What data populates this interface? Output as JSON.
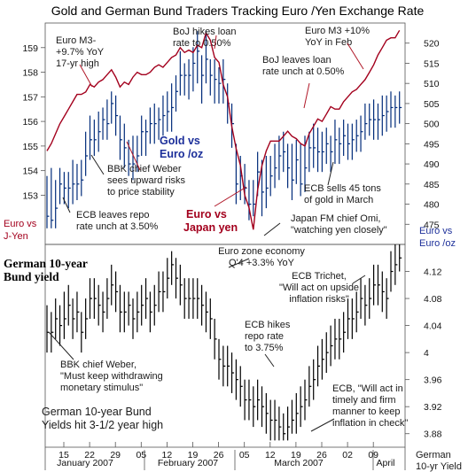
{
  "chart_data": [
    {
      "type": "line",
      "title": "Gold and German Bund Traders Tracking Euro /Yen Exchange Rate",
      "panel": "top",
      "left_axis": {
        "ylim": [
          151,
          160
        ],
        "ticks": [
          153,
          154,
          155,
          156,
          157,
          158,
          159
        ],
        "ylabel": "Euro vs J-Yen"
      },
      "right_axis": {
        "ylim": [
          470,
          525
        ],
        "ticks": [
          475,
          480,
          485,
          490,
          495,
          500,
          505,
          510,
          515,
          520
        ],
        "ylabel": "Euro vs Euro /oz"
      },
      "series": [
        {
          "name": "Euro vs Japan yen",
          "style": "line",
          "color": "#a3001d",
          "axis": "left",
          "x": [
            0,
            1,
            2,
            3,
            4,
            5,
            6,
            7,
            8,
            9,
            10,
            11,
            12,
            13,
            14,
            15,
            16,
            17,
            18,
            19,
            20,
            21,
            22,
            23,
            24,
            25,
            26,
            27,
            28,
            29,
            30,
            31,
            32,
            33,
            34,
            35,
            36,
            37,
            38,
            39,
            40,
            41,
            42,
            43,
            44,
            45,
            46,
            47,
            48,
            49,
            50,
            51,
            52,
            53,
            54,
            55,
            56,
            57,
            58,
            59,
            60,
            61,
            62,
            63,
            64,
            65,
            66,
            67,
            68,
            69,
            70,
            71,
            72,
            73,
            74,
            75,
            76,
            77,
            78,
            79,
            80,
            81,
            82
          ],
          "y": [
            154.8,
            155.1,
            155.5,
            155.9,
            156.2,
            156.5,
            156.8,
            157.1,
            157.1,
            157.2,
            157.5,
            157.4,
            157.6,
            157.7,
            157.9,
            158.1,
            157.8,
            157.4,
            157.6,
            157.5,
            157.8,
            158.0,
            157.9,
            157.9,
            158.0,
            158.2,
            158.3,
            158.2,
            158.4,
            158.6,
            158.7,
            159.0,
            158.8,
            158.9,
            158.8,
            159.1,
            159.0,
            159.6,
            159.3,
            158.6,
            158.4,
            157.5,
            157.0,
            155.8,
            154.9,
            154.2,
            153.0,
            152.5,
            151.6,
            153.2,
            154.2,
            154.8,
            155.2,
            155.2,
            155.2,
            155.4,
            155.6,
            155.4,
            155.3,
            155.1,
            155.0,
            155.5,
            155.8,
            156.1,
            156.0,
            156.3,
            156.6,
            156.5,
            156.5,
            156.8,
            157.0,
            157.2,
            157.3,
            157.5,
            157.7,
            158.0,
            158.3,
            158.7,
            159.0,
            159.3,
            159.4,
            159.4,
            159.7
          ]
        },
        {
          "name": "Gold vs Euro /oz",
          "style": "hlc",
          "color": "#002b7a",
          "axis": "right",
          "x": [
            0,
            1,
            2,
            3,
            4,
            5,
            6,
            7,
            8,
            9,
            10,
            11,
            12,
            13,
            14,
            15,
            16,
            17,
            18,
            19,
            20,
            21,
            22,
            23,
            24,
            25,
            26,
            27,
            28,
            29,
            30,
            31,
            32,
            33,
            34,
            35,
            36,
            37,
            38,
            39,
            40,
            41,
            42,
            43,
            44,
            45,
            46,
            47,
            48,
            49,
            50,
            51,
            52,
            53,
            54,
            55,
            56,
            57,
            58,
            59,
            60,
            61,
            62,
            63,
            64,
            65,
            66,
            67,
            68,
            69,
            70,
            71,
            72,
            73,
            74,
            75,
            76,
            77,
            78,
            79,
            80,
            81,
            82
          ],
          "close": [
            477,
            476,
            479,
            485,
            484,
            484,
            485,
            485,
            486,
            492,
            496,
            496,
            498,
            501,
            500,
            505,
            502,
            496,
            494,
            490,
            490,
            492,
            498,
            498,
            500,
            500,
            501,
            502,
            503,
            504,
            508,
            512,
            512,
            512,
            515,
            518,
            512,
            516,
            512,
            511,
            510,
            511,
            505,
            500,
            485,
            487,
            484,
            480,
            480,
            488,
            483,
            484,
            487,
            489,
            492,
            493,
            489,
            486,
            491,
            485,
            489,
            494,
            494,
            493,
            493,
            495,
            493,
            496,
            495,
            497,
            495,
            496,
            497,
            498,
            500,
            501,
            501,
            501,
            502,
            503,
            504,
            504,
            504
          ],
          "high": [
            487,
            489,
            486,
            489,
            488,
            488,
            491,
            490,
            491,
            498,
            502,
            501,
            503,
            504,
            506,
            508,
            507,
            502,
            500,
            496,
            497,
            497,
            502,
            501,
            504,
            505,
            504,
            507,
            508,
            510,
            512,
            518,
            515,
            516,
            519,
            523,
            517,
            523,
            516,
            516,
            514,
            516,
            510,
            505,
            495,
            492,
            490,
            486,
            486,
            493,
            491,
            492,
            492,
            495,
            497,
            498,
            495,
            495,
            496,
            495,
            497,
            498,
            500,
            499,
            498,
            499,
            497,
            501,
            499,
            501,
            500,
            500,
            501,
            502,
            505,
            505,
            506,
            505,
            507,
            507,
            508,
            507,
            508
          ],
          "low": [
            474,
            474,
            474,
            480,
            480,
            479,
            480,
            481,
            482,
            487,
            491,
            492,
            493,
            496,
            496,
            500,
            497,
            491,
            489,
            487,
            486,
            488,
            492,
            492,
            495,
            495,
            496,
            497,
            498,
            498,
            503,
            507,
            507,
            506,
            508,
            510,
            505,
            510,
            507,
            505,
            505,
            505,
            500,
            494,
            480,
            481,
            480,
            476,
            477,
            482,
            477,
            479,
            482,
            484,
            486,
            488,
            484,
            481,
            485,
            482,
            483,
            488,
            489,
            488,
            488,
            490,
            488,
            490,
            490,
            492,
            491,
            491,
            493,
            493,
            496,
            497,
            496,
            496,
            497,
            498,
            499,
            499,
            500
          ]
        }
      ]
    },
    {
      "type": "line",
      "panel": "bottom",
      "y_axis": {
        "ylim": [
          3.86,
          4.16
        ],
        "ticks": [
          3.88,
          3.92,
          3.96,
          4,
          4.04,
          4.08,
          4.12
        ],
        "ylabel": "German 10-yr Yield"
      },
      "series": [
        {
          "name": "German 10-year Bund yield",
          "style": "hlc",
          "color": "#000000",
          "x": [
            0,
            1,
            2,
            3,
            4,
            5,
            6,
            7,
            8,
            9,
            10,
            11,
            12,
            13,
            14,
            15,
            16,
            17,
            18,
            19,
            20,
            21,
            22,
            23,
            24,
            25,
            26,
            27,
            28,
            29,
            30,
            31,
            32,
            33,
            34,
            35,
            36,
            37,
            38,
            39,
            40,
            41,
            42,
            43,
            44,
            45,
            46,
            47,
            48,
            49,
            50,
            51,
            52,
            53,
            54,
            55,
            56,
            57,
            58,
            59,
            60,
            61,
            62,
            63,
            64,
            65,
            66,
            67,
            68,
            69,
            70,
            71,
            72,
            73,
            74,
            75,
            76,
            77,
            78,
            79,
            80,
            81,
            82
          ],
          "close": [
            4.03,
            4.03,
            4.05,
            4.04,
            4.05,
            4.07,
            4.05,
            4.06,
            4.03,
            4.05,
            4.08,
            4.08,
            4.07,
            4.06,
            4.08,
            4.1,
            4.09,
            4.06,
            4.06,
            4.07,
            4.05,
            4.06,
            4.07,
            4.08,
            4.06,
            4.07,
            4.09,
            4.09,
            4.11,
            4.13,
            4.11,
            4.1,
            4.08,
            4.08,
            4.08,
            4.08,
            4.07,
            4.06,
            4.05,
            4.02,
            3.99,
            3.98,
            3.98,
            3.97,
            3.96,
            3.95,
            3.93,
            3.93,
            3.92,
            3.93,
            3.92,
            3.91,
            3.9,
            3.9,
            3.89,
            3.88,
            3.89,
            3.9,
            3.91,
            3.92,
            3.93,
            3.95,
            3.96,
            3.98,
            3.99,
            4.0,
            4.01,
            4.02,
            4.02,
            4.03,
            4.05,
            4.05,
            4.06,
            4.08,
            4.07,
            4.08,
            4.1,
            4.1,
            4.09,
            4.08,
            4.12,
            4.13,
            4.14
          ],
          "high": [
            4.07,
            4.06,
            4.08,
            4.07,
            4.09,
            4.1,
            4.08,
            4.09,
            4.06,
            4.08,
            4.11,
            4.11,
            4.1,
            4.09,
            4.11,
            4.13,
            4.12,
            4.1,
            4.09,
            4.09,
            4.08,
            4.09,
            4.1,
            4.11,
            4.09,
            4.1,
            4.12,
            4.12,
            4.14,
            4.15,
            4.14,
            4.13,
            4.11,
            4.11,
            4.11,
            4.11,
            4.1,
            4.09,
            4.08,
            4.05,
            4.02,
            4.01,
            4.01,
            4.0,
            3.99,
            3.98,
            3.96,
            3.96,
            3.95,
            3.96,
            3.95,
            3.94,
            3.93,
            3.93,
            3.92,
            3.91,
            3.92,
            3.93,
            3.94,
            3.95,
            3.96,
            3.98,
            3.99,
            4.01,
            4.02,
            4.03,
            4.04,
            4.05,
            4.05,
            4.06,
            4.08,
            4.08,
            4.09,
            4.11,
            4.1,
            4.11,
            4.13,
            4.13,
            4.12,
            4.11,
            4.15,
            4.16,
            4.16
          ],
          "low": [
            4.0,
            4.0,
            4.02,
            4.01,
            4.02,
            4.04,
            4.02,
            4.03,
            4.0,
            4.02,
            4.05,
            4.05,
            4.04,
            4.03,
            4.05,
            4.07,
            4.06,
            4.03,
            4.03,
            4.04,
            4.02,
            4.03,
            4.04,
            4.05,
            4.03,
            4.04,
            4.06,
            4.06,
            4.08,
            4.1,
            4.08,
            4.07,
            4.05,
            4.05,
            4.05,
            4.05,
            4.04,
            4.03,
            4.02,
            3.99,
            3.96,
            3.95,
            3.95,
            3.94,
            3.93,
            3.92,
            3.9,
            3.9,
            3.89,
            3.9,
            3.89,
            3.88,
            3.87,
            3.87,
            3.87,
            3.87,
            3.87,
            3.88,
            3.88,
            3.89,
            3.9,
            3.92,
            3.93,
            3.95,
            3.96,
            3.97,
            3.98,
            3.99,
            3.99,
            4.0,
            4.02,
            4.02,
            4.03,
            4.05,
            4.04,
            4.05,
            4.07,
            4.07,
            4.06,
            4.05,
            4.09,
            4.1,
            4.12
          ]
        }
      ]
    }
  ],
  "x_axis": {
    "day_ticks": [
      "15",
      "22",
      "29",
      "05",
      "12",
      "19",
      "26",
      "05",
      "12",
      "19",
      "26",
      "02",
      "09"
    ],
    "months": [
      "January 2007",
      "February 2007",
      "March 2007",
      "April"
    ]
  },
  "labels": {
    "left_axis_title_line1": "Euro vs",
    "left_axis_title_line2": "J-Yen",
    "right_axis_title_line1": "Euro vs",
    "right_axis_title_line2": "Euro /oz",
    "bottom_right_line1": "German",
    "bottom_right_line2": "10-yr Yield",
    "gold_series_line1": "Gold vs",
    "gold_series_line2": "Euro /oz",
    "yen_series_line1": "Euro vs",
    "yen_series_line2": "Japan yen",
    "bund_line1": "German 10-year",
    "bund_line2": "Bund yield"
  },
  "annotations": {
    "euro_m3_1": [
      "Euro M3-",
      "+9.7% YoY",
      "17-yr high"
    ],
    "boj_hikes": [
      "BoJ hikes loan",
      "rate to 0.50%"
    ],
    "euro_m3_2": [
      "Euro M3 +10%",
      "YoY in Feb"
    ],
    "boj_unch": [
      "BoJ leaves loan",
      "rate unch at 0.50%"
    ],
    "bbk_weber_1": [
      "BBK chief Weber",
      "sees upward risks",
      "to price stability"
    ],
    "ecb_repo_unch": [
      "ECB leaves repo",
      "rate unch at 3.50%"
    ],
    "ecb_sells_gold": [
      "ECB sells 45 tons",
      "of gold in March"
    ],
    "japan_fm": [
      "Japan FM chief Omi,",
      "\"watching yen closely\""
    ],
    "euro_zone_economy": [
      "Euro zone economy",
      "Q'4 +3.3% YoY"
    ],
    "ecb_trichet": [
      "ECB Trichet,",
      "\"Will act on upside",
      "inflation risks\""
    ],
    "bbk_weber_2": [
      "BBK chief Weber,",
      "\"Must keep withdrawing",
      "monetary stimulus\""
    ],
    "ecb_hikes": [
      "ECB hikes",
      "repo rate",
      "to 3.75%"
    ],
    "german_bund_high": [
      "German 10-year Bund",
      "Yields hit 3-1/2 year high"
    ],
    "ecb_act": [
      "ECB, \"Will act in",
      "timely and firm",
      "manner to keep",
      "inflation in check\""
    ]
  },
  "colors": {
    "yen_line": "#a3001d",
    "gold_bars": "#002b7a",
    "bund_bars": "#000000",
    "series_label_gold": "#1c2f9a",
    "series_label_yen": "#a3001d"
  }
}
